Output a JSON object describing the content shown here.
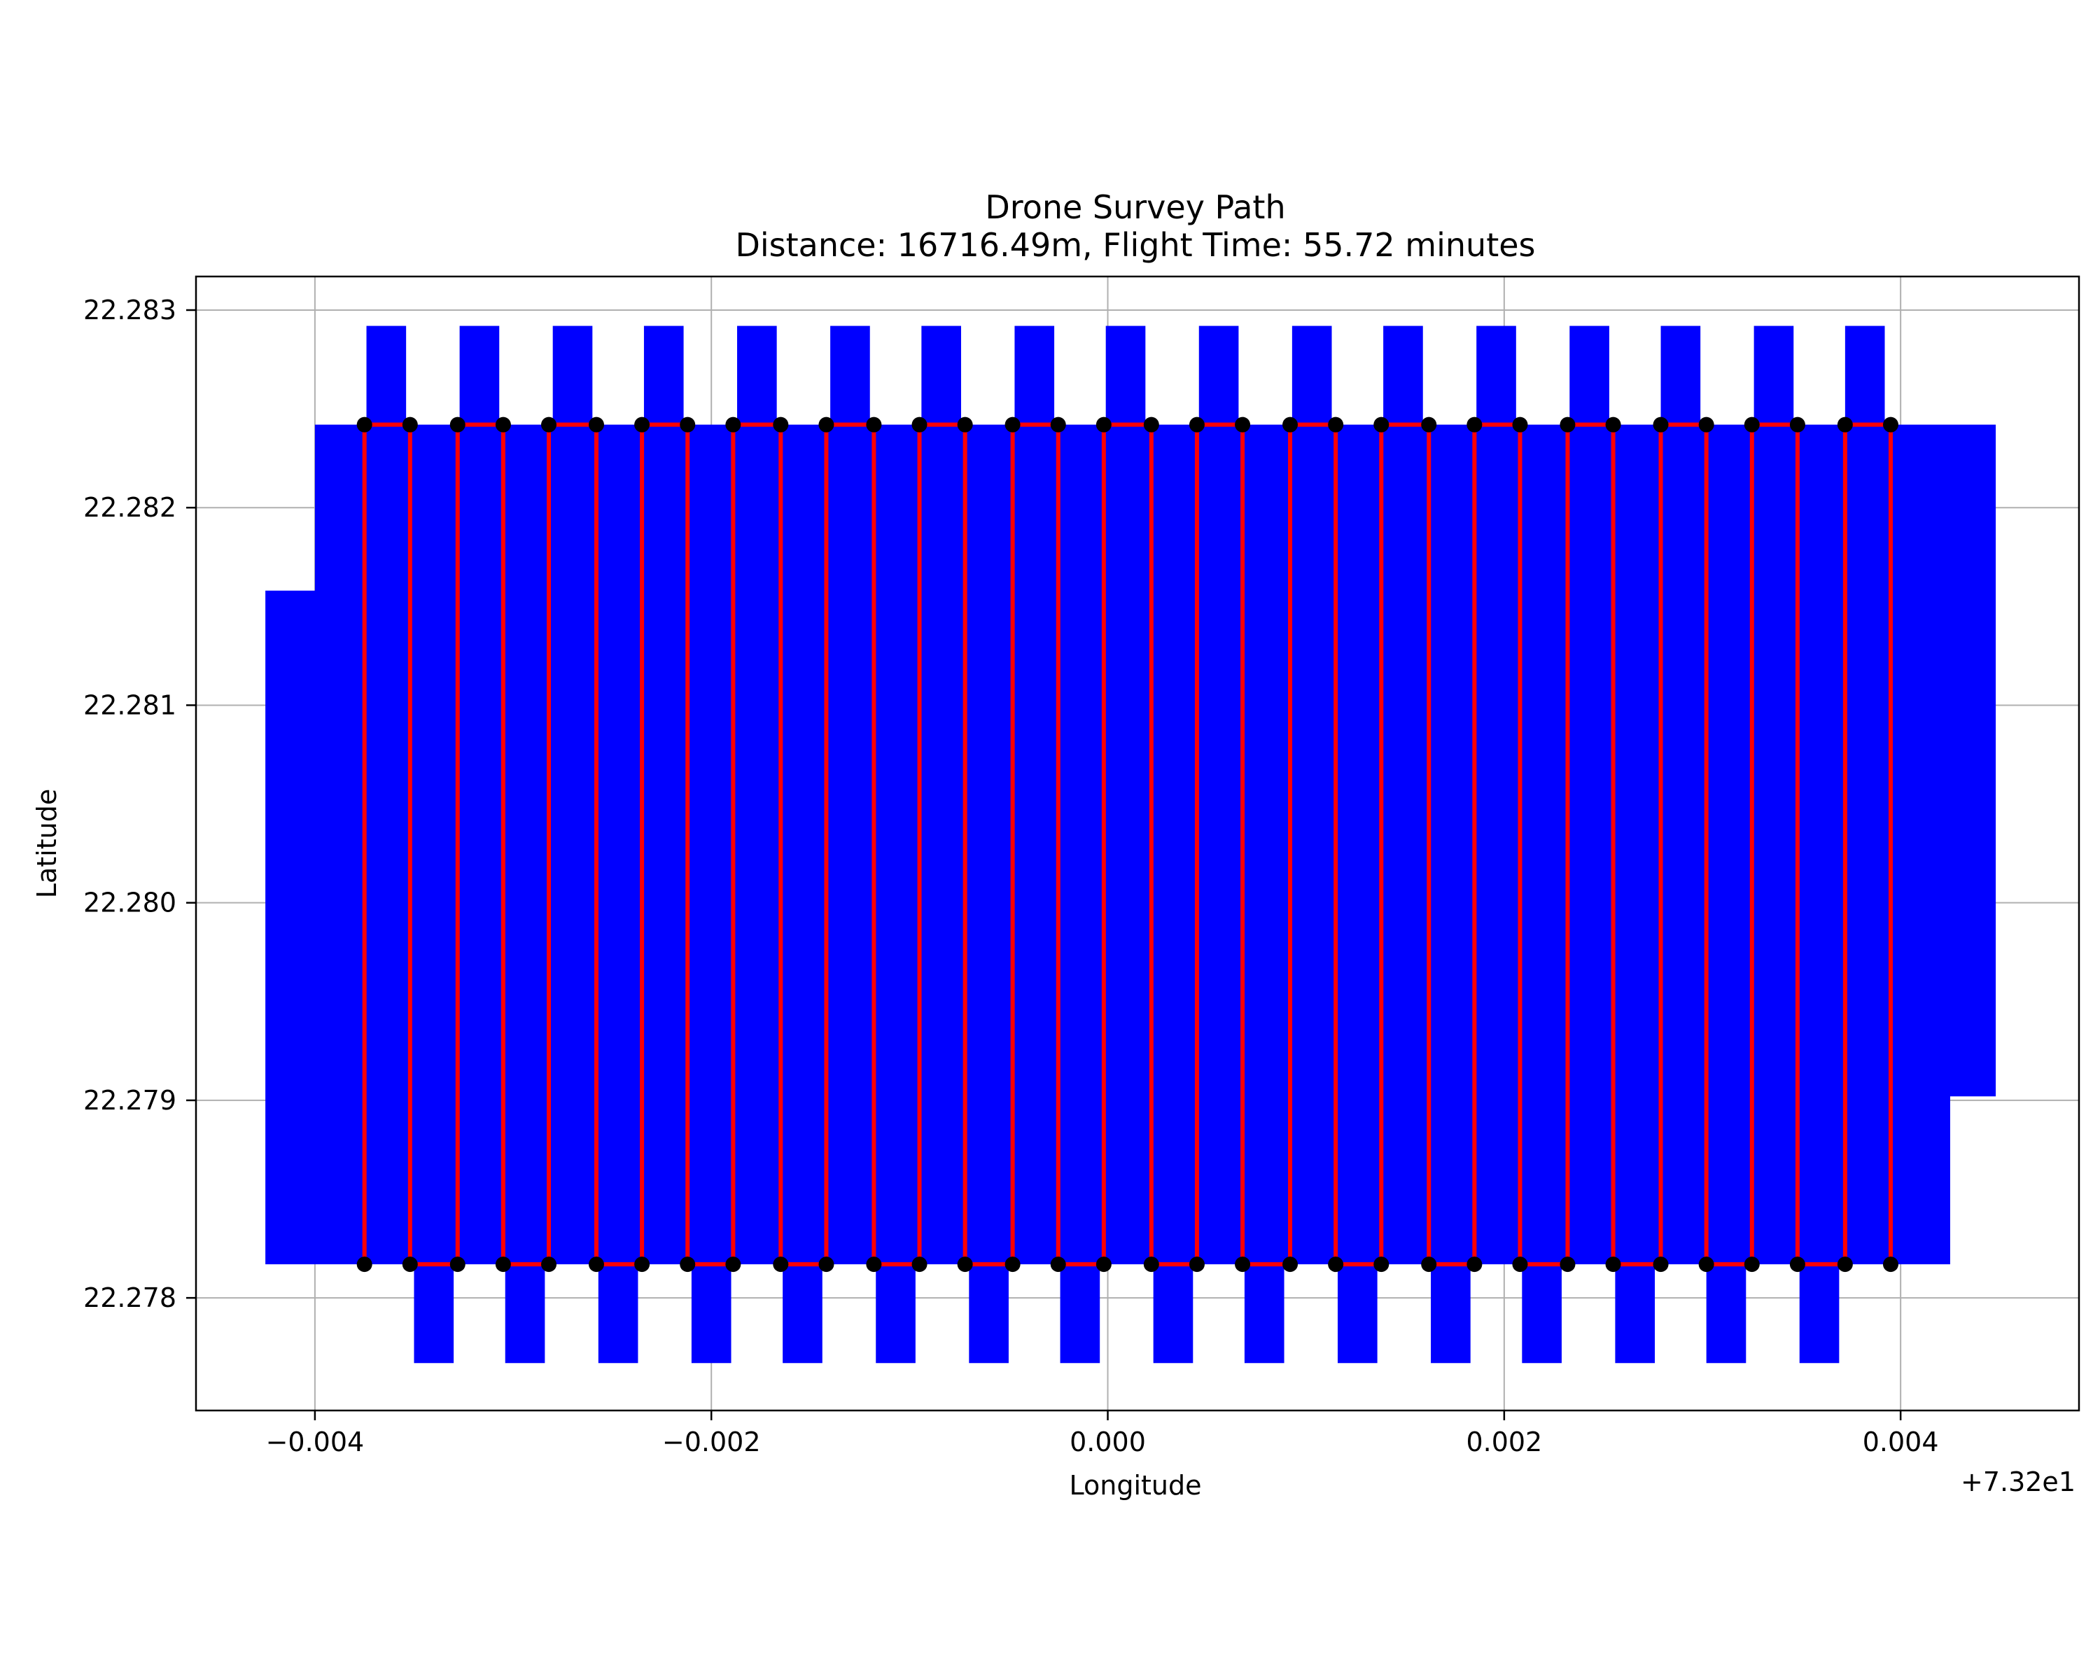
{
  "chart_data": {
    "type": "line",
    "title": "Drone Survey Path",
    "subtitle": "Distance: 16716.49m, Flight Time: 55.72 minutes",
    "xlabel": "Longitude",
    "ylabel": "Latitude",
    "x_offset_label": "+7.32e1",
    "x_offset": 73.2,
    "xlim": [
      -0.0046,
      0.0049
    ],
    "ylim": [
      22.27743,
      22.28317
    ],
    "x_ticks": [
      -0.004,
      -0.002,
      0.0,
      0.002,
      0.004
    ],
    "x_tick_labels": [
      "−0.004",
      "−0.002",
      "0.000",
      "0.002",
      "0.004"
    ],
    "y_ticks": [
      22.278,
      22.279,
      22.28,
      22.281,
      22.282,
      22.283
    ],
    "y_tick_labels": [
      "22.278",
      "22.279",
      "22.280",
      "22.281",
      "22.282",
      "22.283"
    ],
    "grid": true,
    "colors": {
      "coverage": "#0000ff",
      "path": "#ff0000",
      "waypoint": "#000000",
      "grid": "#b0b0b0",
      "axes": "#000000"
    },
    "survey_area": {
      "name": "",
      "polygon": [
        [
          -0.00425,
          22.28158
        ],
        [
          -0.004,
          22.28158
        ],
        [
          -0.004,
          22.28242
        ],
        [
          0.00448,
          22.28242
        ],
        [
          0.00448,
          22.27902
        ],
        [
          0.00425,
          22.27902
        ],
        [
          0.00425,
          22.27817
        ],
        [
          -0.00425,
          22.27817
        ]
      ]
    },
    "coverage_tabs": {
      "width": 0.0002,
      "top_centers": [
        -0.00364,
        -0.00317,
        -0.0027,
        -0.00224,
        -0.00177,
        -0.0013,
        -0.00084,
        -0.00037,
        9e-05,
        0.00056,
        0.00103,
        0.00149,
        0.00196,
        0.00243,
        0.00289,
        0.00336,
        0.00382
      ],
      "top_range": [
        22.28242,
        22.28292
      ],
      "bottom_centers": [
        -0.0034,
        -0.00294,
        -0.00247,
        -0.002,
        -0.00154,
        -0.00107,
        -0.0006,
        -0.00014,
        0.00033,
        0.00079,
        0.00126,
        0.00173,
        0.00219,
        0.00266,
        0.00312,
        0.00359
      ],
      "bottom_range": [
        22.27767,
        22.27817
      ]
    },
    "series": [
      {
        "name": "",
        "role": "flight-path",
        "sweep_x": [
          -0.00375,
          -0.00352,
          -0.00328,
          -0.00305,
          -0.00282,
          -0.00258,
          -0.00235,
          -0.00212,
          -0.00189,
          -0.00165,
          -0.00142,
          -0.00118,
          -0.00095,
          -0.00072,
          -0.00048,
          -0.00025,
          -2e-05,
          0.00022,
          0.00045,
          0.00068,
          0.00092,
          0.00115,
          0.00138,
          0.00162,
          0.00185,
          0.00208,
          0.00232,
          0.00255,
          0.00279,
          0.00302,
          0.00325,
          0.00348,
          0.00372,
          0.00395
        ],
        "y_bottom": 22.27817,
        "y_top": 22.28242
      }
    ]
  }
}
